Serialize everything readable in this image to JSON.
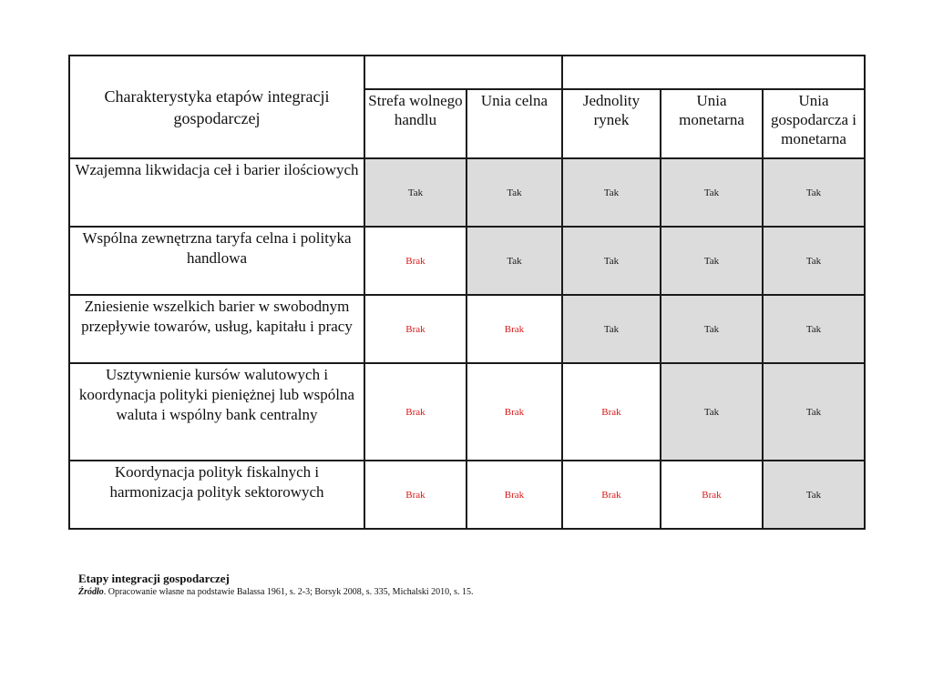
{
  "table": {
    "corner_header": "Charakterystyka etapów integracji gospodarczej",
    "columns": [
      "Strefa wolnego handlu",
      "Unia celna",
      "Jednolity rynek",
      "Unia monetarna",
      "Unia gospodarcza i monetarna"
    ],
    "rows": [
      {
        "label": "Wzajemna likwidacja ceł i barier ilościowych",
        "values": [
          "Tak",
          "Tak",
          "Tak",
          "Tak",
          "Tak"
        ]
      },
      {
        "label": "Wspólna zewnętrzna taryfa celna i polityka handlowa",
        "values": [
          "Brak",
          "Tak",
          "Tak",
          "Tak",
          "Tak"
        ]
      },
      {
        "label": "Zniesienie wszelkich barier w swobodnym przepływie towarów, usług, kapitału i pracy",
        "values": [
          "Brak",
          "Brak",
          "Tak",
          "Tak",
          "Tak"
        ]
      },
      {
        "label": "Usztywnienie kursów walutowych i koordynacja polityki pieniężnej lub wspólna waluta i wspólny bank centralny",
        "values": [
          "Brak",
          "Brak",
          "Brak",
          "Tak",
          "Tak"
        ]
      },
      {
        "label": "Koordynacja polityk fiskalnych i harmonizacja polityk sektorowych",
        "values": [
          "Brak",
          "Brak",
          "Brak",
          "Brak",
          "Tak"
        ]
      }
    ]
  },
  "caption": {
    "title": "Etapy integracji gospodarczej",
    "source_label": "Źródło",
    "source_text": ". Opracowanie własne na podstawie Balassa 1961, s. 2-3; Borsyk 2008, s. 335, Michalski 2010, s. 15."
  },
  "colors": {
    "yes_fill": "#dcdcdc",
    "no_text": "#d81818",
    "border": "#1a1a1a"
  }
}
